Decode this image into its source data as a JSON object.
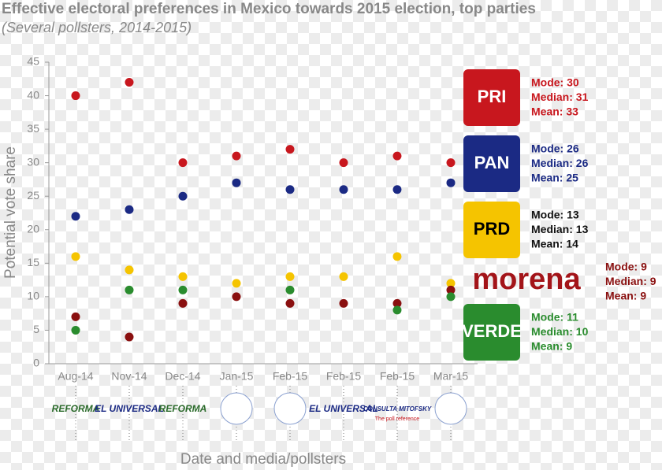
{
  "chart_data": {
    "type": "dot",
    "title": "Effective electoral preferences in Mexico towards 2015 election, top parties",
    "subtitle": "(Several pollsters, 2014-2015)",
    "y_label": "Potential vote share",
    "x_label": "Date and media/pollsters",
    "categories": [
      "Aug-14",
      "Nov-14",
      "Dec-14",
      "Jan-15",
      "Feb-15",
      "Feb-15",
      "Feb-15",
      "Mar-15"
    ],
    "pollsters": [
      {
        "name": "REFORMA"
      },
      {
        "name": "EL UNIVERSAL"
      },
      {
        "name": "REFORMA"
      },
      null,
      null,
      {
        "name": "EL UNIVERSAL"
      },
      {
        "name": "CONSULTA MITOFSKY",
        "tagline": "The poll reference"
      },
      null
    ],
    "ylim": [
      0,
      45
    ],
    "yticks": [
      0,
      5,
      10,
      15,
      20,
      25,
      30,
      35,
      40,
      45
    ],
    "series": [
      {
        "name": "PRI",
        "color": "#c8171e",
        "values": [
          40,
          42,
          30,
          31,
          32,
          30,
          31,
          30
        ],
        "stats": [
          "Mode: 30",
          "Median: 31",
          "Mean: 33"
        ]
      },
      {
        "name": "PAN",
        "color": "#1b2a84",
        "values": [
          22,
          23,
          25,
          27,
          26,
          26,
          26,
          27
        ],
        "stats": [
          "Mode: 26",
          "Median: 26",
          "Mean: 25"
        ]
      },
      {
        "name": "PRD",
        "color": "#f5c400",
        "values": [
          16,
          14,
          13,
          12,
          13,
          13,
          16,
          12
        ],
        "stats": [
          "Mode: 13",
          "Median: 13",
          "Mean: 14"
        ]
      },
      {
        "name": "morena",
        "color": "#8a1010",
        "values": [
          7,
          4,
          9,
          10,
          9,
          9,
          9,
          11
        ],
        "stats": [
          "Mode: 9",
          "Median: 9",
          "Mean: 9"
        ]
      },
      {
        "name": "VERDE",
        "color": "#2a8c2e",
        "values": [
          5,
          11,
          11,
          null,
          11,
          null,
          8,
          10
        ],
        "stats": [
          "Mode: 11",
          "Median: 10",
          "Mean: 9"
        ]
      }
    ]
  }
}
